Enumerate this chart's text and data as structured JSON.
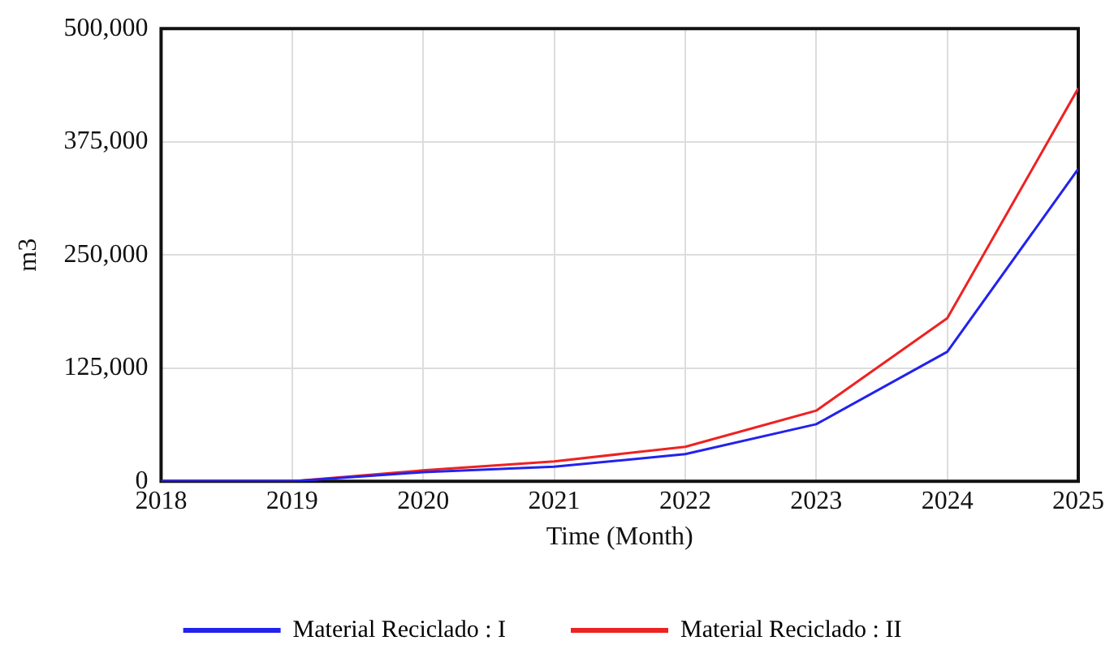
{
  "chart_data": {
    "type": "line",
    "xlabel": "Time (Month)",
    "ylabel": "m3",
    "x": [
      2018,
      2019,
      2020,
      2021,
      2022,
      2023,
      2024,
      2025
    ],
    "xlim": [
      2018,
      2025
    ],
    "xticks": [
      2018,
      2019,
      2020,
      2021,
      2022,
      2023,
      2024,
      2025
    ],
    "ylim": [
      0,
      500000
    ],
    "yticks": [
      {
        "value": 0,
        "label": "0"
      },
      {
        "value": 125000,
        "label": "125,000"
      },
      {
        "value": 250000,
        "label": "250,000"
      },
      {
        "value": 375000,
        "label": "375,000"
      },
      {
        "value": 500000,
        "label": "500,000"
      }
    ],
    "grid": true,
    "legend": "bottom",
    "marker": "none",
    "line_style": "solid",
    "series": [
      {
        "name": "Material Reciclado : I",
        "color": "#2222ee",
        "values": [
          0,
          0,
          10000,
          16000,
          30000,
          63000,
          143000,
          345000
        ]
      },
      {
        "name": "Material Reciclado : II",
        "color": "#ee2222",
        "values": [
          0,
          0,
          12000,
          22000,
          38000,
          78000,
          180000,
          434000
        ]
      }
    ]
  }
}
